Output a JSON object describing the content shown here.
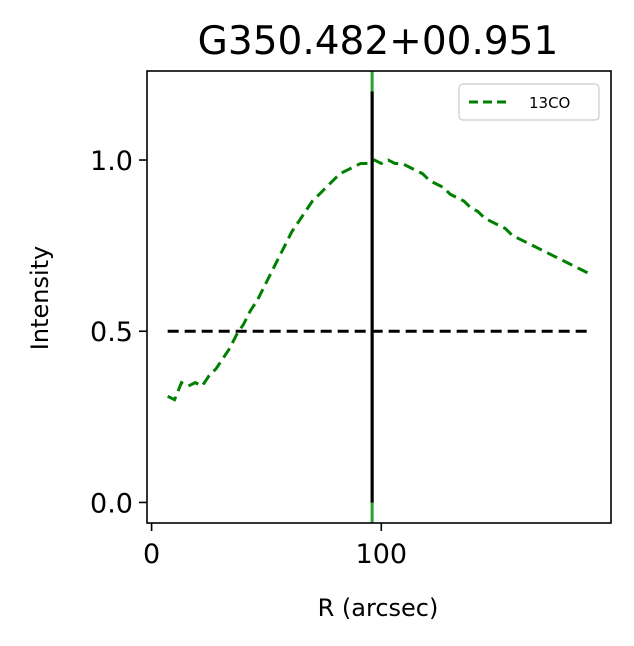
{
  "chart_data": {
    "type": "line",
    "title": "G350.482+00.951",
    "xlabel": "R (arcsec)",
    "ylabel": "Intensity",
    "xlim": [
      -2,
      200
    ],
    "ylim": [
      -0.06,
      1.26
    ],
    "xticks": [
      0,
      100
    ],
    "yticks": [
      0.0,
      0.5,
      1.0
    ],
    "xtick_labels": [
      "0",
      "100"
    ],
    "ytick_labels": [
      "0.0",
      "0.5",
      "1.0"
    ],
    "legend": {
      "placement": "upper right",
      "entries": [
        "13CO"
      ]
    },
    "series": [
      {
        "name": "13CO",
        "color": "#008000",
        "style": "dashed",
        "x": [
          7,
          10,
          13,
          16,
          19,
          22,
          25,
          28,
          31,
          34,
          37,
          40,
          43,
          46,
          49,
          52,
          55,
          58,
          61,
          64,
          67,
          70,
          73,
          76,
          79,
          82,
          85,
          88,
          91,
          94,
          97,
          100,
          103,
          106,
          109,
          112,
          115,
          118,
          121,
          124,
          127,
          130,
          133,
          136,
          139,
          142,
          145,
          148,
          151,
          154,
          157,
          160,
          163,
          166,
          169,
          172,
          175,
          178,
          181,
          184,
          187,
          190
        ],
        "y": [
          0.31,
          0.3,
          0.35,
          0.34,
          0.35,
          0.34,
          0.37,
          0.39,
          0.42,
          0.45,
          0.49,
          0.52,
          0.56,
          0.59,
          0.63,
          0.67,
          0.71,
          0.75,
          0.79,
          0.82,
          0.85,
          0.88,
          0.9,
          0.92,
          0.94,
          0.96,
          0.97,
          0.98,
          0.99,
          0.99,
          1.0,
          0.99,
          1.0,
          0.99,
          0.99,
          0.98,
          0.97,
          0.96,
          0.94,
          0.93,
          0.92,
          0.9,
          0.89,
          0.88,
          0.86,
          0.85,
          0.83,
          0.82,
          0.81,
          0.8,
          0.78,
          0.77,
          0.76,
          0.75,
          0.74,
          0.73,
          0.72,
          0.71,
          0.7,
          0.69,
          0.68,
          0.67
        ]
      }
    ],
    "reference_lines": [
      {
        "orientation": "horizontal",
        "y": 0.5,
        "x_range": [
          7,
          190
        ],
        "color": "#000000",
        "style": "dashed"
      },
      {
        "orientation": "vertical",
        "x": 96,
        "y_range": [
          0.0,
          1.2
        ],
        "color": "#000000",
        "style": "solid"
      },
      {
        "orientation": "vertical",
        "x": 96,
        "y_range": [
          -0.06,
          1.26
        ],
        "color": "#2ca02c",
        "style": "solid"
      }
    ]
  }
}
